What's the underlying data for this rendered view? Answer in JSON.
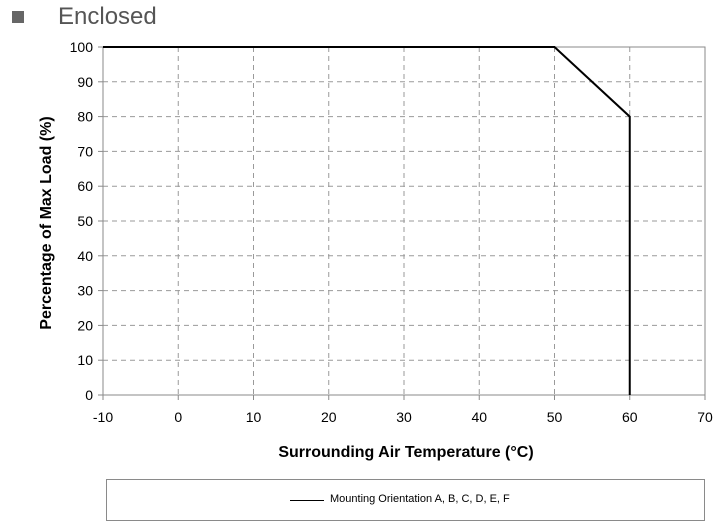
{
  "header": {
    "title": "Enclosed",
    "bullet_color": "#666666"
  },
  "chart_data": {
    "type": "line",
    "title": "",
    "xlabel": "Surrounding Air Temperature (°C)",
    "ylabel": "Percentage of Max Load (%)",
    "xlim": [
      -10,
      70
    ],
    "ylim": [
      0,
      100
    ],
    "xticks": [
      -10,
      0,
      10,
      20,
      30,
      40,
      50,
      60,
      70
    ],
    "yticks": [
      0,
      10,
      20,
      30,
      40,
      50,
      60,
      70,
      80,
      90,
      100
    ],
    "grid": true,
    "legend_position": "bottom",
    "series": [
      {
        "name": "Mounting Orientation A, B, C, D, E, F",
        "color": "#000000",
        "x": [
          -10,
          50,
          60,
          60
        ],
        "y": [
          100,
          100,
          80,
          0
        ]
      }
    ]
  }
}
